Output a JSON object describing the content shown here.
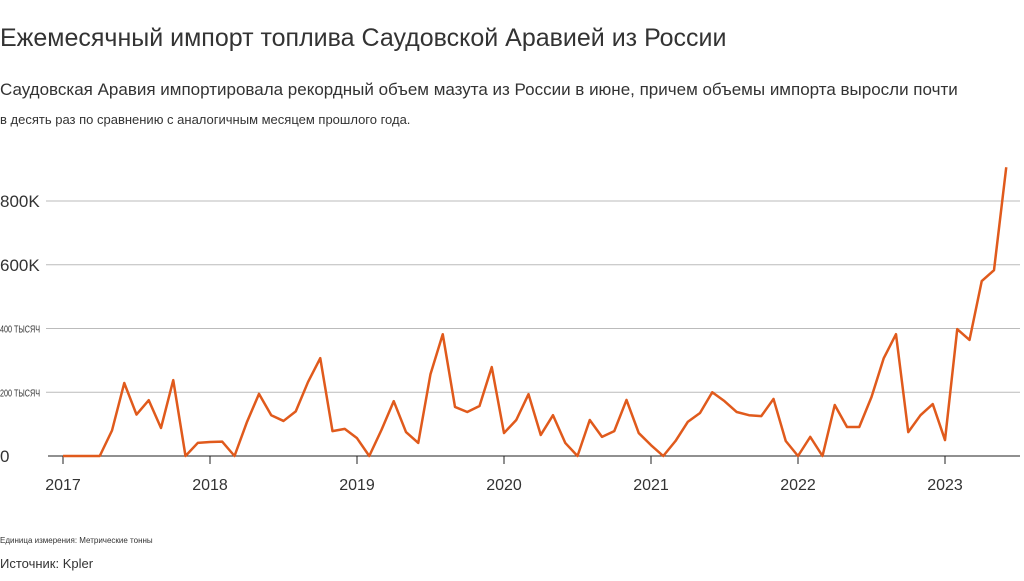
{
  "chart_data": {
    "type": "line",
    "title": "Ежемесячный импорт топлива Саудовской Аравией из России",
    "subtitle": [
      "Саудовская Аравия импортировала рекордный объем мазута из России в июне, причем объемы импорта выросли почти",
      "в десять раз по сравнению с аналогичным месяцем прошлого года."
    ],
    "categories": [
      "2017",
      null,
      null,
      null,
      null,
      null,
      null,
      null,
      null,
      null,
      null,
      null,
      "2018",
      null,
      null,
      null,
      null,
      null,
      null,
      null,
      null,
      null,
      null,
      null,
      "2019",
      null,
      null,
      null,
      null,
      null,
      null,
      null,
      null,
      null,
      null,
      null,
      "2020",
      null,
      null,
      null,
      null,
      null,
      null,
      null,
      null,
      null,
      null,
      null,
      "2021",
      null,
      null,
      null,
      null,
      null,
      null,
      null,
      null,
      null,
      null,
      null,
      "2022",
      null,
      null,
      null,
      null,
      null,
      null,
      null,
      null,
      null,
      null,
      null,
      "2023",
      null,
      null,
      null,
      null,
      null
    ],
    "series": [
      {
        "color": "#e05a1c",
        "values": [
          0,
          0,
          0,
          0,
          80,
          229,
          130,
          175,
          88,
          238,
          0,
          41,
          44,
          45,
          0,
          105,
          195,
          128,
          110,
          140,
          232,
          307,
          78,
          85,
          56,
          0,
          82,
          172,
          75,
          41,
          257,
          382,
          154,
          138,
          157,
          279,
          72,
          113,
          194,
          66,
          128,
          41,
          0,
          113,
          60,
          78,
          176,
          72,
          34,
          0,
          47,
          107,
          135,
          200,
          172,
          138,
          128,
          125,
          179,
          47,
          0,
          60,
          0,
          160,
          91,
          91,
          185,
          307,
          382,
          75,
          128,
          163,
          50,
          398,
          364,
          549,
          583,
          906
        ]
      }
    ],
    "ylim": [
      0,
      930
    ],
    "yticks": [
      0,
      {
        "value": 200,
        "label": "200 ТЫСЯЧ"
      },
      {
        "value": 400,
        "label": "400 ТЫСЯЧ"
      },
      {
        "value": 600,
        "label": "600K"
      },
      {
        "value": 800,
        "label": "800K"
      }
    ],
    "grid": true,
    "unit_note": "Единица измерения: Метрические тонны",
    "source": "Источник: Kpler"
  }
}
